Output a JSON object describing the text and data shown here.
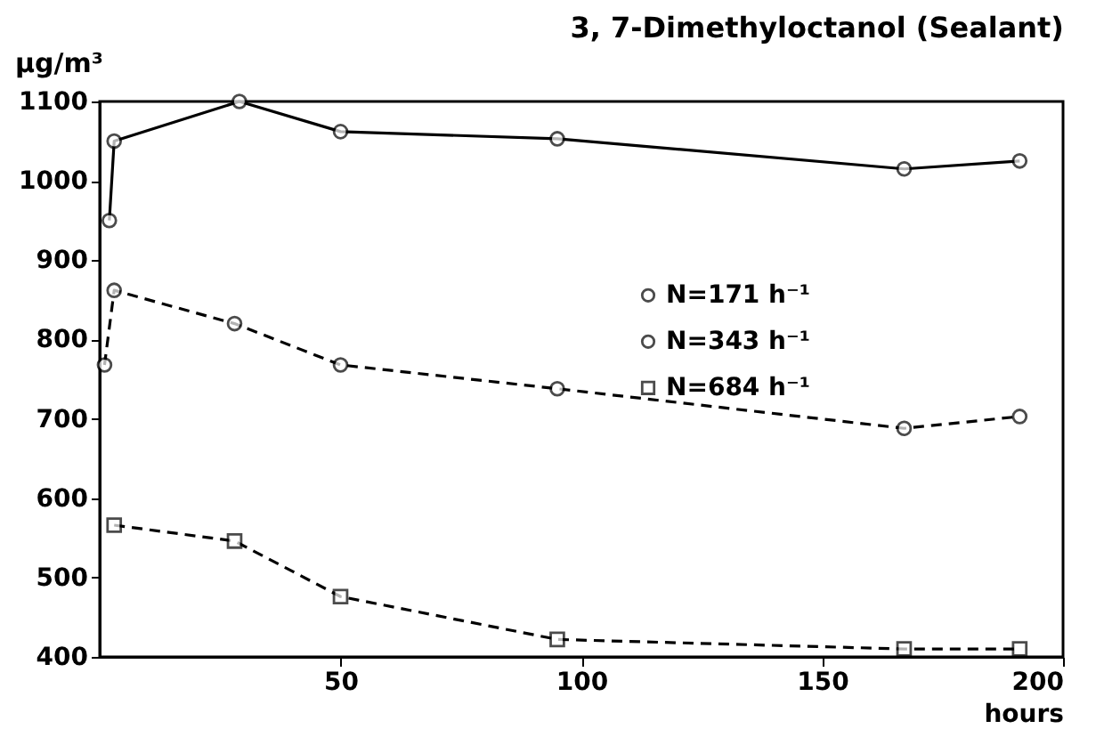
{
  "chart_data": {
    "type": "line",
    "title": "3, 7-Dimethyloctanol (Sealant)",
    "ylabel": "µg/m³",
    "xlabel": "hours",
    "xlim": [
      0,
      200
    ],
    "xticks": [
      50,
      100,
      150,
      200
    ],
    "ylim": [
      400,
      1100
    ],
    "yticks": [
      400,
      500,
      600,
      700,
      800,
      900,
      1000,
      1100
    ],
    "grid": false,
    "legend": "top right",
    "series": [
      {
        "name": "N=171 h⁻¹",
        "color": "#000000",
        "marker": "circle",
        "line_style": "solid",
        "x": [
          2,
          3,
          29,
          50,
          95,
          167,
          191
        ],
        "values": [
          950,
          1050,
          1100,
          1062,
          1053,
          1015,
          1025
        ]
      },
      {
        "name": "N=343 h⁻¹",
        "color": "#000000",
        "marker": "circle",
        "line_style": "dashed",
        "x": [
          1,
          3,
          28,
          50,
          95,
          167,
          191
        ],
        "values": [
          768,
          862,
          820,
          768,
          738,
          688,
          703
        ]
      },
      {
        "name": "N=684 h⁻¹",
        "color": "#000000",
        "marker": "square",
        "line_style": "dashed",
        "x": [
          3,
          28,
          50,
          95,
          167,
          191
        ],
        "values": [
          566,
          546,
          476,
          422,
          410,
          410
        ]
      }
    ]
  }
}
